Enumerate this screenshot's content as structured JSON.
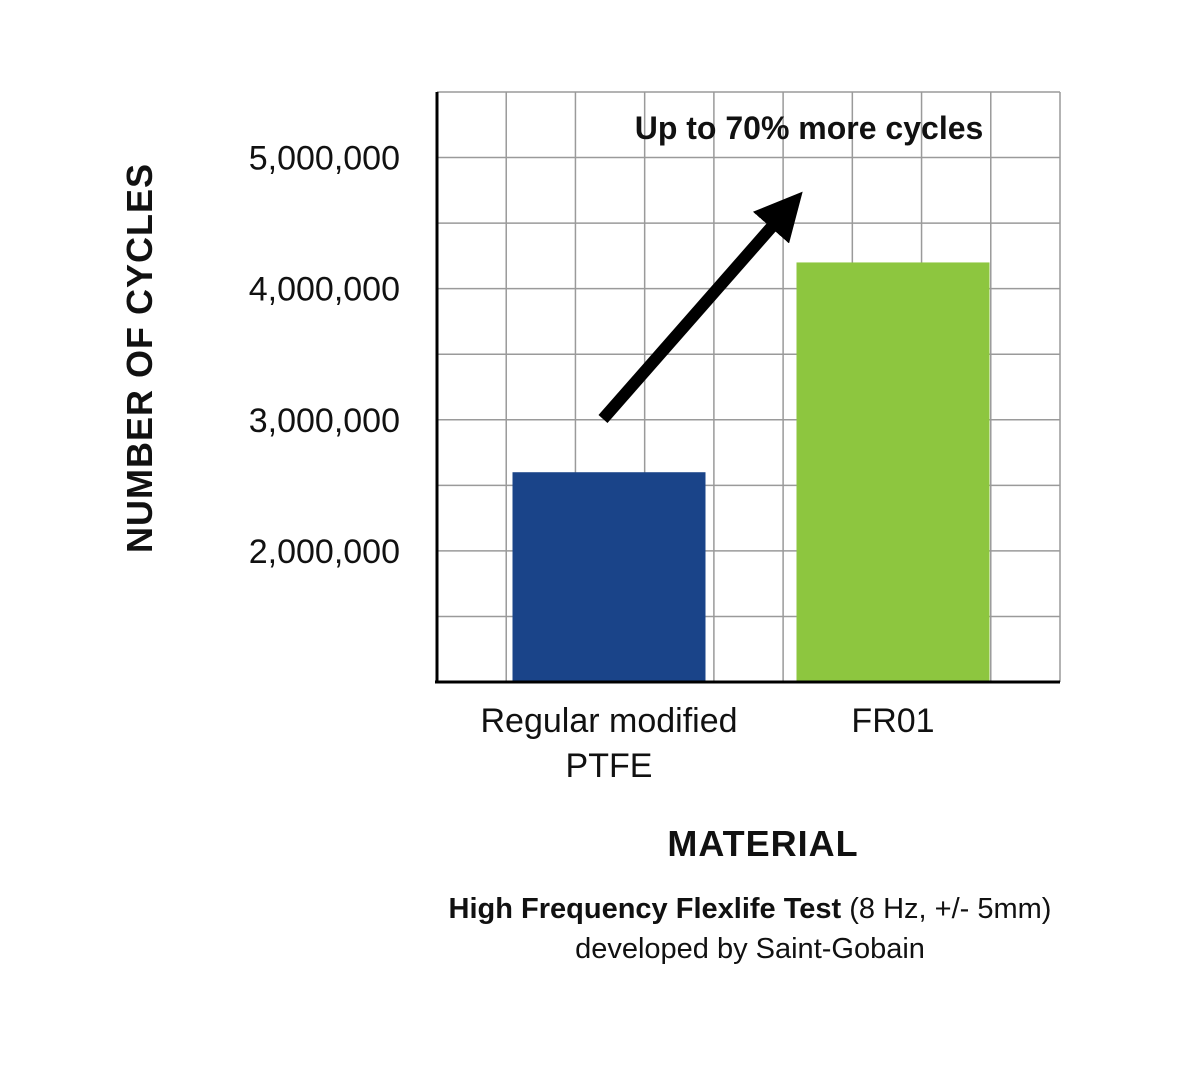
{
  "chart_data": {
    "type": "bar",
    "categories": [
      [
        "Regular modified",
        "PTFE"
      ],
      [
        "FR01"
      ]
    ],
    "series": [
      {
        "name": "Number of cycles",
        "values": [
          2600000,
          4200000
        ],
        "colors": [
          "#1a4489",
          "#8dc63f"
        ]
      }
    ],
    "ylabel": "NUMBER OF CYCLES",
    "xlabel": "MATERIAL",
    "ylim": [
      1000000,
      5500000
    ],
    "yticks": [
      2000000,
      3000000,
      4000000,
      5000000
    ],
    "ytick_labels": [
      "2,000,000",
      "3,000,000",
      "4,000,000",
      "5,000,000"
    ],
    "annotation": "Up to 70% more cycles",
    "grid": true
  },
  "caption": {
    "bold": "High Frequency Flexlife Test",
    "rest": " (8 Hz, +/- 5mm)",
    "line2": "developed by Saint-Gobain"
  }
}
